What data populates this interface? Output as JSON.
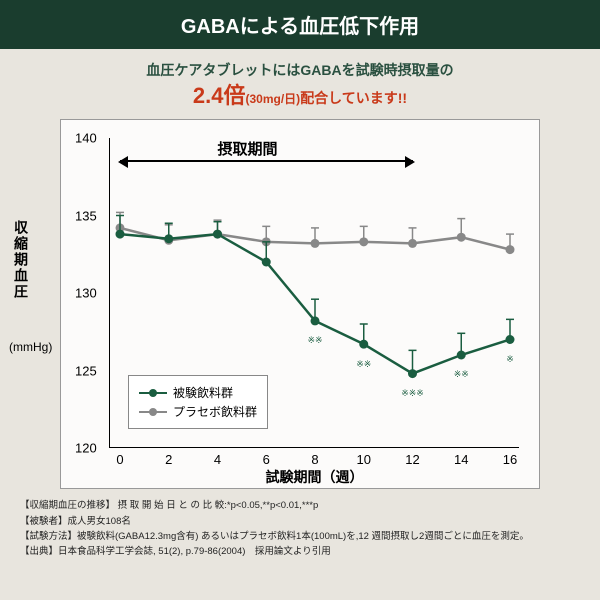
{
  "banner": "GABAによる血圧低下作用",
  "subtitle_pre": "血圧ケアタブレットにはGABAを試験時摂取量の",
  "highlight_big": "2.4倍",
  "highlight_small": "(30mg/日)",
  "subtitle_post": "配合しています!!",
  "yaxis_label": "収縮期血圧",
  "yaxis_unit": "(mmHg)",
  "xaxis_label": "試験期間（週）",
  "intake_label": "摂取期間",
  "legend_test": "被験飲料群",
  "legend_placebo": "プラセボ飲料群",
  "chart": {
    "ylim": [
      120,
      140
    ],
    "ytick_step": 5,
    "xlim": [
      0,
      16
    ],
    "xtick_step": 2,
    "xticks": [
      0,
      2,
      4,
      6,
      8,
      10,
      12,
      14,
      16
    ],
    "yticks": [
      120,
      125,
      130,
      135,
      140
    ],
    "intake_range": [
      0,
      12
    ],
    "test_color": "#1a5d40",
    "placebo_color": "#888888",
    "test_x": [
      0,
      2,
      4,
      6,
      8,
      10,
      12,
      14,
      16
    ],
    "test_y": [
      133.8,
      133.5,
      133.8,
      132.0,
      128.2,
      126.7,
      124.8,
      126.0,
      127.0
    ],
    "test_err": [
      1.2,
      1.0,
      0.8,
      1.3,
      1.4,
      1.3,
      1.5,
      1.4,
      1.3
    ],
    "placebo_x": [
      0,
      2,
      4,
      6,
      8,
      10,
      12,
      14,
      16
    ],
    "placebo_y": [
      134.2,
      133.4,
      133.8,
      133.3,
      133.2,
      133.3,
      133.2,
      133.6,
      132.8
    ],
    "placebo_err": [
      1.0,
      1.0,
      0.9,
      1.0,
      1.0,
      1.0,
      1.0,
      1.2,
      1.0
    ],
    "sig": [
      {
        "x": 8,
        "label": "※※"
      },
      {
        "x": 10,
        "label": "※※"
      },
      {
        "x": 12,
        "label": "※※※"
      },
      {
        "x": 14,
        "label": "※※"
      },
      {
        "x": 16,
        "label": "※"
      }
    ]
  },
  "footnotes": [
    "【収縮期血圧の推移】  摂 取 開 始 日 と の 比 較:*p<0.05,**p<0.01,***p",
    "【被験者】成人男女108名",
    "【試験方法】被験飲料(GABA12.3mg含有) あるいはプラセボ飲料1本(100mL)を,12 週間摂取し2週間ごとに血圧を測定。",
    "【出典】日本食品科学工学会誌, 51(2), p.79-86(2004)　採用論文より引用"
  ]
}
